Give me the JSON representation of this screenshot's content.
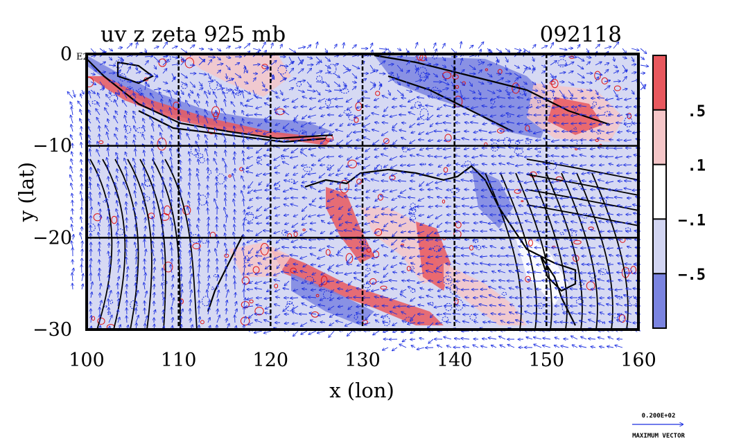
{
  "chart_data": {
    "type": "heatmap",
    "title": "uv z zeta 925 mb",
    "time_label": "092118",
    "xlabel": "x (lon)",
    "ylabel": "y (lat)",
    "xlim": [
      100,
      160
    ],
    "ylim": [
      -30,
      0
    ],
    "x_ticks": [
      {
        "value": 100,
        "label": "100"
      },
      {
        "value": 110,
        "label": "110"
      },
      {
        "value": 120,
        "label": "120"
      },
      {
        "value": 130,
        "label": "130"
      },
      {
        "value": 140,
        "label": "140"
      },
      {
        "value": 150,
        "label": "150"
      },
      {
        "value": 160,
        "label": "160"
      }
    ],
    "y_ticks": [
      {
        "value": 0,
        "label": "0"
      },
      {
        "value": -10,
        "label": "−10"
      },
      {
        "value": -20,
        "label": "−20"
      },
      {
        "value": -30,
        "label": "−30"
      }
    ],
    "y_top_suffix": "E2",
    "grid": true,
    "colorbar": {
      "levels": [
        {
          "lower": 0.5,
          "upper": null,
          "color": "#e8585e"
        },
        {
          "lower": 0.1,
          "upper": 0.5,
          "color": "#f5c6c8"
        },
        {
          "lower": -0.1,
          "upper": 0.1,
          "color": "#ffffff"
        },
        {
          "lower": -0.5,
          "upper": -0.1,
          "color": "#d2d5f2"
        },
        {
          "lower": null,
          "upper": -0.5,
          "color": "#7b84e0"
        }
      ],
      "tick_labels": [
        ".5",
        ".1",
        "−.1",
        "−.5"
      ]
    },
    "vector_legend": {
      "magnitude_label": "0.200E+02",
      "caption": "MAXIMUM VECTOR"
    },
    "colors": {
      "vectors": "#1a2de0",
      "positive_contour": "#e01010",
      "negative_contour": "#1a2de0",
      "height_contour": "#000000"
    }
  }
}
